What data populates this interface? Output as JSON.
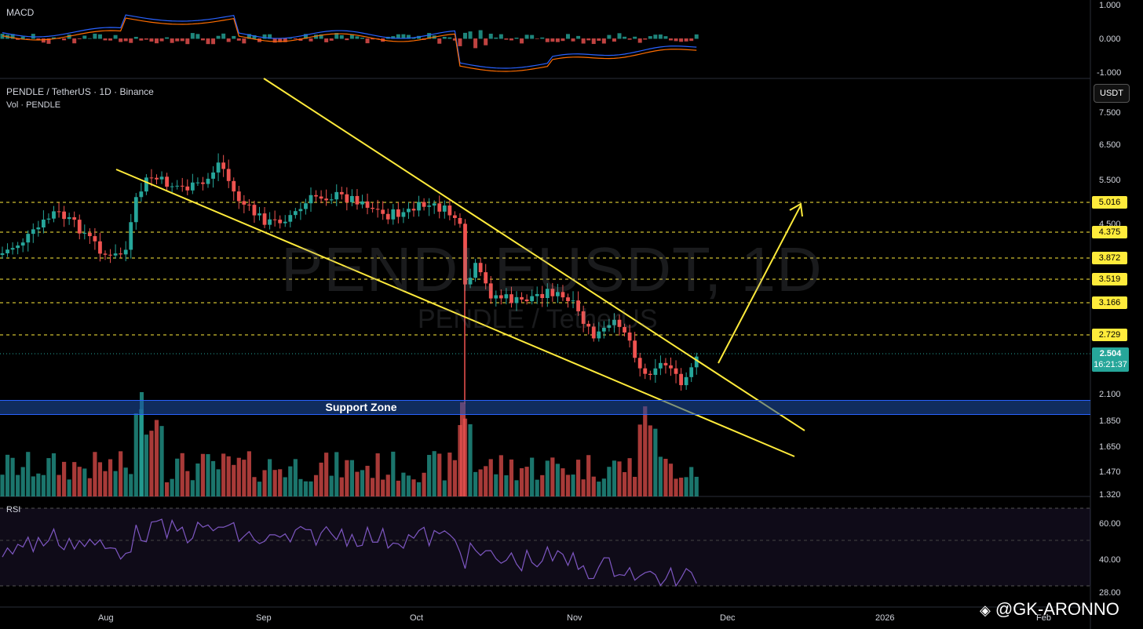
{
  "macd_panel": {
    "label": "MACD",
    "ticks": [
      "1.000",
      "0.000",
      "-1.000"
    ]
  },
  "main_panel": {
    "symbol_title": "PENDLE / TetherUS · 1D · Binance",
    "volume_label": "Vol · PENDLE",
    "watermark_symbol": "PENDLEUSDT, 1D",
    "watermark_desc": "PENDLE / TetherUS",
    "currency_button": "USDT",
    "price_ticks": [
      "7.500",
      "6.500",
      "5.500",
      "2.100",
      "1.850",
      "1.650",
      "1.470",
      "1.320"
    ],
    "level_tags": [
      "5.016",
      "4.375",
      "3.872",
      "3.519",
      "3.166",
      "2.729"
    ],
    "last_price": "2.504",
    "countdown": "16:21:37",
    "support_zone_label": "Support Zone",
    "hidden_tick": "4.500"
  },
  "rsi_panel": {
    "label": "RSI",
    "ticks": [
      "60.00",
      "40.00",
      "28.00"
    ]
  },
  "time_axis": [
    "Aug",
    "Sep",
    "Oct",
    "Nov",
    "Dec",
    "2026",
    "Feb"
  ],
  "credit": "@GK-ARONNO",
  "colors": {
    "bull": "#26a69a",
    "bear": "#ef5350",
    "trendline": "#ffeb3b",
    "support_zone": "#1e50aa",
    "rsi": "#7e57c2",
    "macd_line": "#2962ff",
    "signal_line": "#ff6d00"
  }
}
